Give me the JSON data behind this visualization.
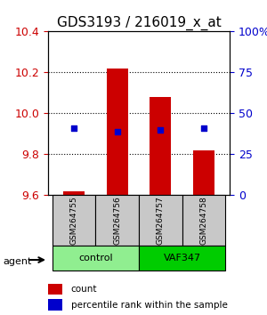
{
  "title": "GDS3193 / 216019_x_at",
  "samples": [
    "GSM264755",
    "GSM264756",
    "GSM264757",
    "GSM264758"
  ],
  "groups": [
    "control",
    "control",
    "VAF347",
    "VAF347"
  ],
  "group_colors": {
    "control": "#90EE90",
    "VAF347": "#00CC00"
  },
  "bar_bottom": 9.6,
  "bar_values": [
    9.62,
    10.22,
    10.08,
    9.82
  ],
  "percentile_values": [
    9.93,
    9.91,
    9.92,
    9.93
  ],
  "ylim_left": [
    9.6,
    10.4
  ],
  "ylim_right": [
    0,
    100
  ],
  "yticks_left": [
    9.6,
    9.8,
    10.0,
    10.2,
    10.4
  ],
  "yticks_right": [
    0,
    25,
    50,
    75,
    100
  ],
  "yticklabels_right": [
    "0",
    "25",
    "50",
    "75",
    "100%"
  ],
  "bar_color": "#CC0000",
  "dot_color": "#0000CC",
  "grid_color": "#000000",
  "bg_color": "#FFFFFF",
  "plot_bg": "#FFFFFF",
  "left_tick_color": "#CC0000",
  "right_tick_color": "#0000CC",
  "legend_count_color": "#CC0000",
  "legend_pct_color": "#0000CC",
  "bar_width": 0.5,
  "agent_label": "agent",
  "xlabel_fontsize": 7,
  "title_fontsize": 11
}
